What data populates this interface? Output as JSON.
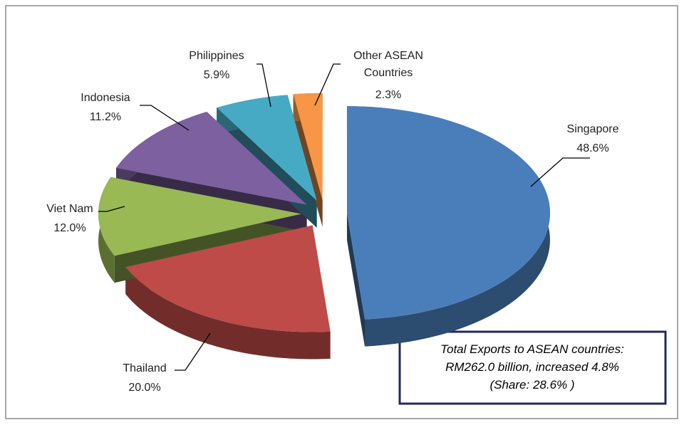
{
  "chart_data": {
    "type": "pie3d",
    "categories": [
      "Singapore",
      "Thailand",
      "Viet Nam",
      "Indonesia",
      "Philippines",
      "Other ASEAN Countries"
    ],
    "values": [
      48.6,
      20.0,
      12.0,
      11.2,
      5.9,
      2.3
    ],
    "value_labels": [
      "48.6%",
      "20.0%",
      "12.0%",
      "11.2%",
      "5.9%",
      "2.3%"
    ],
    "colors": [
      "#4a7ebb",
      "#be4b48",
      "#98b954",
      "#7d60a0",
      "#46aac5",
      "#f79646"
    ],
    "annotation": [
      "Total Exports to ASEAN countries:",
      "RM262.0 billion, increased 4.8%",
      "(Share: 28.6% )"
    ]
  }
}
